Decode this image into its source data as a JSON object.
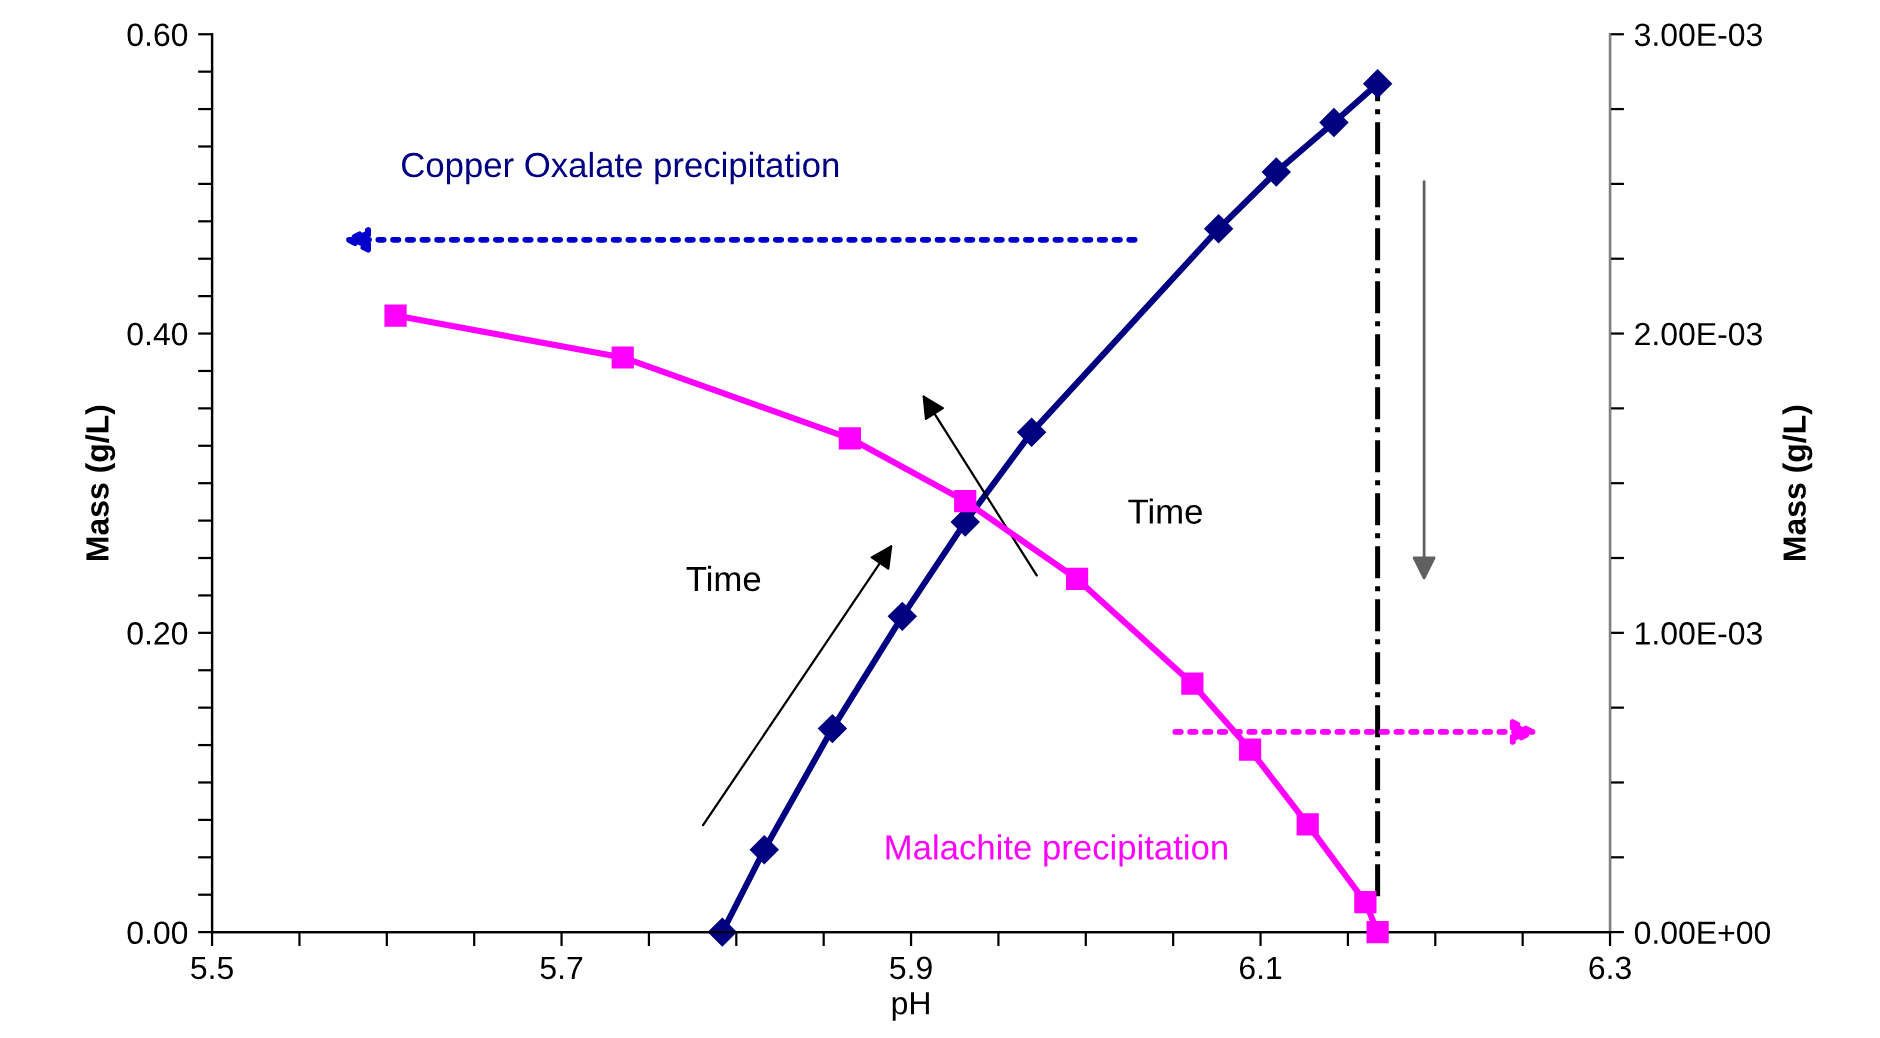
{
  "chart_data": {
    "type": "line",
    "xlabel": "pH",
    "ylabel": "Mass (g/L)",
    "y2label": "Mass (g/L)",
    "annotations": [
      "Time",
      "Time"
    ],
    "xlim": [
      5.5,
      6.3
    ],
    "xticks": [
      5.5,
      {
        "value": 5.55,
        "label": null
      },
      {
        "value": 5.6,
        "label": null
      },
      {
        "value": 5.65,
        "label": null
      },
      5.7,
      {
        "value": 5.75,
        "label": null
      },
      {
        "value": 5.8,
        "label": null
      },
      {
        "value": 5.85,
        "label": null
      },
      5.9,
      {
        "value": 5.95,
        "label": null
      },
      {
        "value": 6.0,
        "label": null
      },
      {
        "value": 6.05,
        "label": null
      },
      6.1,
      {
        "value": 6.15,
        "label": null
      },
      {
        "value": 6.2,
        "label": null
      },
      {
        "value": 6.25,
        "label": null
      },
      6.3
    ],
    "ylim": [
      0,
      0.6
    ],
    "yticks": [
      {
        "value": 0,
        "label": "0.00"
      },
      {
        "value": 0.025,
        "label": null
      },
      {
        "value": 0.05,
        "label": null
      },
      {
        "value": 0.075,
        "label": null
      },
      {
        "value": 0.1,
        "label": null
      },
      {
        "value": 0.125,
        "label": null
      },
      {
        "value": 0.15,
        "label": null
      },
      {
        "value": 0.175,
        "label": null
      },
      {
        "value": 0.2,
        "label": "0.20"
      },
      {
        "value": 0.225,
        "label": null
      },
      {
        "value": 0.25,
        "label": null
      },
      {
        "value": 0.275,
        "label": null
      },
      {
        "value": 0.3,
        "label": null
      },
      {
        "value": 0.325,
        "label": null
      },
      {
        "value": 0.35,
        "label": null
      },
      {
        "value": 0.375,
        "label": null
      },
      {
        "value": 0.4,
        "label": "0.40"
      },
      {
        "value": 0.425,
        "label": null
      },
      {
        "value": 0.45,
        "label": null
      },
      {
        "value": 0.475,
        "label": null
      },
      {
        "value": 0.5,
        "label": null
      },
      {
        "value": 0.525,
        "label": null
      },
      {
        "value": 0.55,
        "label": null
      },
      {
        "value": 0.575,
        "label": null
      },
      {
        "value": 0.6,
        "label": "0.60"
      }
    ],
    "y2lim": [
      0,
      0.003
    ],
    "y2ticks": [
      {
        "value": 0,
        "label": "0.00E+00"
      },
      {
        "value": 0.00025,
        "label": null
      },
      {
        "value": 0.0005,
        "label": null
      },
      {
        "value": 0.00075,
        "label": null
      },
      {
        "value": 0.001,
        "label": "1.00E-03"
      },
      {
        "value": 0.00125,
        "label": null
      },
      {
        "value": 0.0015,
        "label": null
      },
      {
        "value": 0.00175,
        "label": null
      },
      {
        "value": 0.002,
        "label": "2.00E-03"
      },
      {
        "value": 0.00225,
        "label": null
      },
      {
        "value": 0.0025,
        "label": null
      },
      {
        "value": 0.00275,
        "label": null
      },
      {
        "value": 0.003,
        "label": "3.00E-03"
      }
    ],
    "grid": false,
    "legend": false,
    "line_style": "solid",
    "ref_lines": [
      {
        "axis": "x",
        "value": 6.167,
        "color": "#000000",
        "line_style": "dashdot"
      }
    ],
    "series": [
      {
        "name": "Copper Oxalate precipitation",
        "color": "#000080",
        "marker": "diamond",
        "x": [
          5.792,
          5.816,
          5.855,
          5.895,
          5.931,
          5.969,
          6.076,
          6.109,
          6.142,
          6.167
        ],
        "values": [
          0,
          0.055,
          0.136,
          0.211,
          0.274,
          0.334,
          0.47,
          0.508,
          0.541,
          0.567
        ]
      },
      {
        "name": "Malachite precipitation",
        "color": "#ff00ff",
        "marker": "square",
        "axis": "y2",
        "x": [
          5.605,
          5.735,
          5.865,
          5.931,
          5.995,
          6.061,
          6.094,
          6.127,
          6.16,
          6.167
        ],
        "values": [
          0.00206,
          0.00192,
          0.00165,
          0.00144,
          0.00118,
          0.00083,
          0.00061,
          0.00036,
          0.0001,
          0
        ]
      }
    ]
  }
}
